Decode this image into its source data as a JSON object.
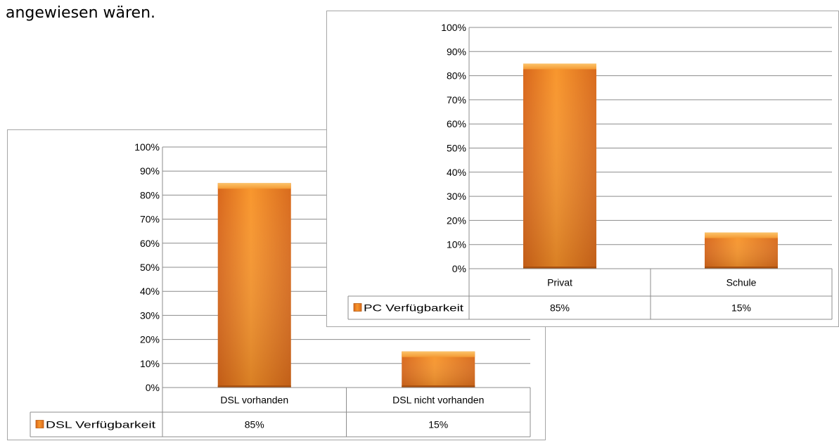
{
  "document": {
    "text_line": "angewiesen wären."
  },
  "chart_data": [
    {
      "type": "bar",
      "categories": [
        "DSL vorhanden",
        "DSL nicht vorhanden"
      ],
      "series": [
        {
          "name": "DSL Verfügbarkeit",
          "values": [
            85,
            15
          ],
          "labels": [
            "85%",
            "15%"
          ]
        }
      ],
      "ylim": [
        0,
        100
      ],
      "ytick_step": 10,
      "ytick_labels": [
        "0%",
        "10%",
        "20%",
        "30%",
        "40%",
        "50%",
        "60%",
        "70%",
        "80%",
        "90%",
        "100%"
      ],
      "grid": true,
      "legend": "data-table",
      "bar_color": "#f0841e"
    },
    {
      "type": "bar",
      "categories": [
        "Privat",
        "Schule"
      ],
      "series": [
        {
          "name": "PC Verfügbarkeit",
          "values": [
            85,
            15
          ],
          "labels": [
            "85%",
            "15%"
          ]
        }
      ],
      "ylim": [
        0,
        100
      ],
      "ytick_step": 10,
      "ytick_labels": [
        "0%",
        "10%",
        "20%",
        "30%",
        "40%",
        "50%",
        "60%",
        "70%",
        "80%",
        "90%",
        "100%"
      ],
      "grid": true,
      "legend": "data-table",
      "bar_color": "#f0841e"
    }
  ]
}
